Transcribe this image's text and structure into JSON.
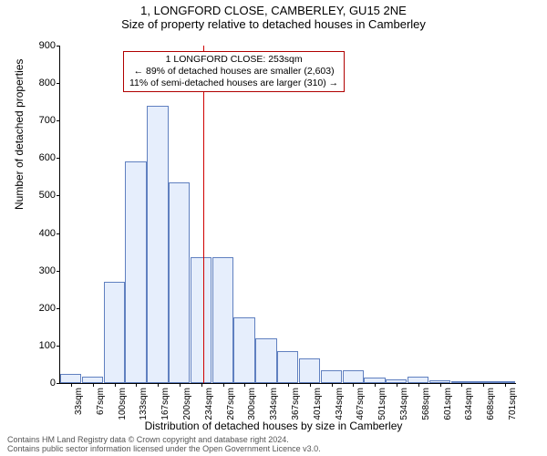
{
  "title": {
    "line1": "1, LONGFORD CLOSE, CAMBERLEY, GU15 2NE",
    "line2": "Size of property relative to detached houses in Camberley"
  },
  "chart": {
    "type": "histogram",
    "ylabel": "Number of detached properties",
    "xlabel": "Distribution of detached houses by size in Camberley",
    "ylim": [
      0,
      900
    ],
    "ytick_step": 100,
    "yticks": [
      0,
      100,
      200,
      300,
      400,
      500,
      600,
      700,
      800,
      900
    ],
    "xticks": [
      "33sqm",
      "67sqm",
      "100sqm",
      "133sqm",
      "167sqm",
      "200sqm",
      "234sqm",
      "267sqm",
      "300sqm",
      "334sqm",
      "367sqm",
      "401sqm",
      "434sqm",
      "467sqm",
      "501sqm",
      "534sqm",
      "568sqm",
      "601sqm",
      "634sqm",
      "668sqm",
      "701sqm"
    ],
    "bar_values": [
      25,
      18,
      270,
      590,
      740,
      535,
      335,
      335,
      175,
      120,
      85,
      65,
      35,
      35,
      15,
      10,
      18,
      8,
      5,
      3,
      5
    ],
    "bar_fill": "#e6eefc",
    "bar_stroke": "#6080c0",
    "grid_color": "#ffffff",
    "background_color": "#ffffff",
    "tick_fontsize": 10,
    "label_fontsize": 12,
    "title_fontsize": 13,
    "marker": {
      "value_sqm": 253,
      "position_bin_index": 6.6,
      "line_color": "#d00000"
    },
    "annotation": {
      "lines": [
        "1 LONGFORD CLOSE: 253sqm",
        "← 89% of detached houses are smaller (2,603)",
        "11% of semi-detached houses are larger (310) →"
      ],
      "border_color": "#b00000",
      "fontsize": 10.5
    }
  },
  "footer": {
    "line1": "Contains HM Land Registry data © Crown copyright and database right 2024.",
    "line2": "Contains public sector information licensed under the Open Government Licence v3.0."
  }
}
